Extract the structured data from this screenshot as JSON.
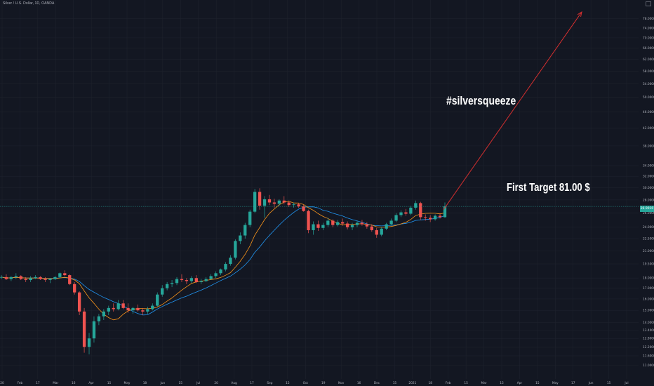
{
  "header": {
    "symbol_line": "Silver / U.S. Dollar, 1D, OANDA"
  },
  "annotations": {
    "hashtag": "#silversqueeze",
    "target": "First Target 81.00 $"
  },
  "colors": {
    "background": "#131722",
    "up": "#26a69a",
    "down": "#ef5350",
    "ma_fast": "#f7931a",
    "ma_slow": "#2196f3",
    "arrow": "#d32f2f",
    "grid": "#1e222d"
  },
  "chart_data": {
    "type": "candlestick",
    "y_scale": "log",
    "last_price": "26.9910",
    "y_ticks": [
      "78.0000",
      "74.0000",
      "70.0000",
      "66.0000",
      "62.0000",
      "58.0000",
      "54.0000",
      "50.0000",
      "46.0000",
      "42.0000",
      "38.0000",
      "34.0000",
      "32.0000",
      "30.0000",
      "28.0000",
      "26.0000",
      "24.0000",
      "22.5000",
      "21.0000",
      "19.5000",
      "18.0000",
      "17.0000",
      "16.0000",
      "15.0000",
      "14.0000",
      "13.4000",
      "12.8000",
      "12.2000",
      "11.6000",
      "11.0000"
    ],
    "x_ticks": [
      "20",
      "Feb",
      "17",
      "Mar",
      "16",
      "Apr",
      "15",
      "May",
      "18",
      "Jun",
      "15",
      "Jul",
      "20",
      "Aug",
      "17",
      "Sep",
      "15",
      "Oct",
      "19",
      "Nov",
      "16",
      "Dec",
      "15",
      "2021",
      "18",
      "Feb",
      "15",
      "Mar",
      "15",
      "Apr",
      "15",
      "May",
      "17",
      "Jun",
      "15",
      "Jul"
    ],
    "candles": [
      [
        18.1,
        18.3,
        17.9,
        18.1
      ],
      [
        18.1,
        18.4,
        17.8,
        17.9
      ],
      [
        17.9,
        18.2,
        17.7,
        18.1
      ],
      [
        18.1,
        18.5,
        17.9,
        18.2
      ],
      [
        18.2,
        18.3,
        17.8,
        17.9
      ],
      [
        17.9,
        18.1,
        17.6,
        17.8
      ],
      [
        17.8,
        18.2,
        17.6,
        18.0
      ],
      [
        18.0,
        18.3,
        17.9,
        18.1
      ],
      [
        18.1,
        18.2,
        17.8,
        17.9
      ],
      [
        17.9,
        18.1,
        17.6,
        17.8
      ],
      [
        17.8,
        18.0,
        17.5,
        17.9
      ],
      [
        17.9,
        18.2,
        17.8,
        18.1
      ],
      [
        18.1,
        18.6,
        18.0,
        18.5
      ],
      [
        18.5,
        18.8,
        18.2,
        18.3
      ],
      [
        18.3,
        18.4,
        17.3,
        17.4
      ],
      [
        17.4,
        17.6,
        16.4,
        16.6
      ],
      [
        16.6,
        16.7,
        14.6,
        14.9
      ],
      [
        14.9,
        15.2,
        11.8,
        12.2
      ],
      [
        12.2,
        13.2,
        11.7,
        12.8
      ],
      [
        12.8,
        14.5,
        12.5,
        14.1
      ],
      [
        14.1,
        14.7,
        13.8,
        14.5
      ],
      [
        14.5,
        15.1,
        14.2,
        14.9
      ],
      [
        14.9,
        15.4,
        14.6,
        15.2
      ],
      [
        15.2,
        15.6,
        14.9,
        15.1
      ],
      [
        15.1,
        15.9,
        15.0,
        15.6
      ],
      [
        15.6,
        15.9,
        15.1,
        15.2
      ],
      [
        15.2,
        15.6,
        14.8,
        15.0
      ],
      [
        15.0,
        15.3,
        14.7,
        15.2
      ],
      [
        15.2,
        15.5,
        14.9,
        15.0
      ],
      [
        15.0,
        15.2,
        14.6,
        14.9
      ],
      [
        14.9,
        15.3,
        14.7,
        15.1
      ],
      [
        15.1,
        15.6,
        15.0,
        15.4
      ],
      [
        15.4,
        16.6,
        15.3,
        16.4
      ],
      [
        16.4,
        17.3,
        16.2,
        17.0
      ],
      [
        17.0,
        17.6,
        16.8,
        17.4
      ],
      [
        17.4,
        17.8,
        17.1,
        17.5
      ],
      [
        17.5,
        18.1,
        17.3,
        17.9
      ],
      [
        17.9,
        18.4,
        17.6,
        17.8
      ],
      [
        17.8,
        18.0,
        17.4,
        17.7
      ],
      [
        17.7,
        18.2,
        17.5,
        18.0
      ],
      [
        18.0,
        18.3,
        17.5,
        17.6
      ],
      [
        17.6,
        17.9,
        17.4,
        17.7
      ],
      [
        17.7,
        18.1,
        17.6,
        17.9
      ],
      [
        17.9,
        18.4,
        17.8,
        18.2
      ],
      [
        18.2,
        18.7,
        18.0,
        18.5
      ],
      [
        18.5,
        19.0,
        18.3,
        18.9
      ],
      [
        18.9,
        19.7,
        18.7,
        19.5
      ],
      [
        19.5,
        20.5,
        19.3,
        20.2
      ],
      [
        20.2,
        22.4,
        20.0,
        22.2
      ],
      [
        22.2,
        23.3,
        21.8,
        22.9
      ],
      [
        22.9,
        24.6,
        22.5,
        24.3
      ],
      [
        24.3,
        26.5,
        24.0,
        26.2
      ],
      [
        26.2,
        29.8,
        26.0,
        29.3
      ],
      [
        29.3,
        29.9,
        26.5,
        27.1
      ],
      [
        27.1,
        28.6,
        25.3,
        28.1
      ],
      [
        28.1,
        28.8,
        27.2,
        27.6
      ],
      [
        27.6,
        28.2,
        26.8,
        27.4
      ],
      [
        27.4,
        28.1,
        27.0,
        27.9
      ],
      [
        27.9,
        28.6,
        27.3,
        27.6
      ],
      [
        27.6,
        27.9,
        26.9,
        27.2
      ],
      [
        27.2,
        27.6,
        26.8,
        27.3
      ],
      [
        27.3,
        27.5,
        26.8,
        27.0
      ],
      [
        27.0,
        27.2,
        26.2,
        26.3
      ],
      [
        26.3,
        26.5,
        23.2,
        23.6
      ],
      [
        23.6,
        24.8,
        23.0,
        24.4
      ],
      [
        24.4,
        24.9,
        23.5,
        23.9
      ],
      [
        23.9,
        24.6,
        23.6,
        24.3
      ],
      [
        24.3,
        25.3,
        24.0,
        24.9
      ],
      [
        24.9,
        25.1,
        24.0,
        24.3
      ],
      [
        24.3,
        25.0,
        24.1,
        24.7
      ],
      [
        24.7,
        25.2,
        24.2,
        24.5
      ],
      [
        24.5,
        24.8,
        23.7,
        24.0
      ],
      [
        24.0,
        24.6,
        23.6,
        24.3
      ],
      [
        24.3,
        24.9,
        24.0,
        24.6
      ],
      [
        24.6,
        25.0,
        24.2,
        24.4
      ],
      [
        24.4,
        24.7,
        23.8,
        24.1
      ],
      [
        24.1,
        24.4,
        23.4,
        23.6
      ],
      [
        23.6,
        23.9,
        22.6,
        23.0
      ],
      [
        23.0,
        24.0,
        22.8,
        23.8
      ],
      [
        23.8,
        24.6,
        23.6,
        24.4
      ],
      [
        24.4,
        25.2,
        24.2,
        24.9
      ],
      [
        24.9,
        26.0,
        24.7,
        25.7
      ],
      [
        25.7,
        26.4,
        25.4,
        26.1
      ],
      [
        26.1,
        26.6,
        25.6,
        25.9
      ],
      [
        25.9,
        27.1,
        25.7,
        26.8
      ],
      [
        26.8,
        27.9,
        26.5,
        27.5
      ],
      [
        27.5,
        27.7,
        25.0,
        25.4
      ],
      [
        25.4,
        25.8,
        24.9,
        25.3
      ],
      [
        25.3,
        25.7,
        24.7,
        25.1
      ],
      [
        25.1,
        25.8,
        24.9,
        25.6
      ],
      [
        25.6,
        26.0,
        25.2,
        25.4
      ],
      [
        25.4,
        27.6,
        25.3,
        27.0
      ]
    ],
    "target_arrow": {
      "from_value": 26.5,
      "to_value": 81.0
    }
  }
}
